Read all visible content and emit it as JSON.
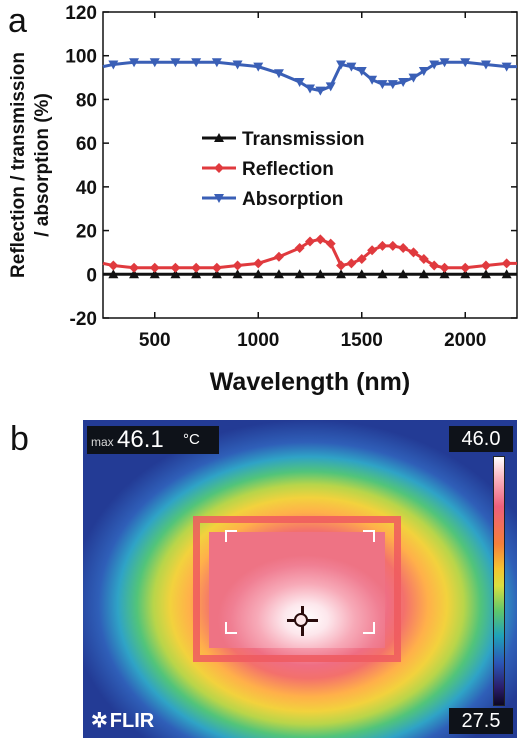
{
  "panels": {
    "a_label": "a",
    "b_label": "b"
  },
  "chart_data": {
    "type": "line",
    "xlabel": "Wavelength (nm)",
    "ylabel": "Reflection / transmission / absorption (%)",
    "ylabel_lines": [
      "Reflection / transmission",
      "/ absorption (%)"
    ],
    "xlim": [
      250,
      2250
    ],
    "ylim": [
      -20,
      120
    ],
    "xticks": [
      500,
      1000,
      1500,
      2000
    ],
    "yticks": [
      -20,
      0,
      20,
      40,
      60,
      80,
      100,
      120
    ],
    "grid": false,
    "legend_position": "center-left",
    "series": [
      {
        "name": "Transmission",
        "color": "#111111",
        "marker": "triangle-up",
        "x": [
          250,
          300,
          400,
          500,
          600,
          700,
          800,
          900,
          1000,
          1100,
          1200,
          1300,
          1400,
          1500,
          1600,
          1700,
          1800,
          1900,
          2000,
          2100,
          2200,
          2250
        ],
        "y": [
          0,
          0,
          0,
          0,
          0,
          0,
          0,
          0,
          0,
          0,
          0,
          0,
          0,
          0,
          0,
          0,
          0,
          0,
          0,
          0,
          0,
          0
        ]
      },
      {
        "name": "Reflection",
        "color": "#e03a3e",
        "marker": "diamond",
        "x": [
          250,
          300,
          400,
          500,
          600,
          700,
          800,
          900,
          1000,
          1100,
          1200,
          1250,
          1300,
          1350,
          1400,
          1450,
          1500,
          1550,
          1600,
          1650,
          1700,
          1750,
          1800,
          1850,
          1900,
          2000,
          2100,
          2200,
          2250
        ],
        "y": [
          5,
          4,
          3,
          3,
          3,
          3,
          3,
          4,
          5,
          8,
          12,
          15,
          16,
          14,
          4,
          5,
          7,
          11,
          13,
          13,
          12,
          10,
          7,
          4,
          3,
          3,
          4,
          5,
          5
        ]
      },
      {
        "name": "Absorption",
        "color": "#3a5fb6",
        "marker": "triangle-down",
        "x": [
          250,
          300,
          400,
          500,
          600,
          700,
          800,
          900,
          1000,
          1100,
          1200,
          1250,
          1300,
          1350,
          1400,
          1450,
          1500,
          1550,
          1600,
          1650,
          1700,
          1750,
          1800,
          1850,
          1900,
          2000,
          2100,
          2200,
          2250
        ],
        "y": [
          95,
          96,
          97,
          97,
          97,
          97,
          97,
          96,
          95,
          92,
          88,
          85,
          84,
          86,
          96,
          95,
          93,
          89,
          87,
          87,
          88,
          90,
          93,
          96,
          97,
          97,
          96,
          95,
          95
        ]
      }
    ]
  },
  "thermal": {
    "max_label": "max",
    "max_value": "46.1",
    "max_unit": "°C",
    "scale_max": "46.0",
    "scale_min": "27.5",
    "logo_text": "FLIR",
    "gradient_colors": [
      "#ffffff",
      "#f9b9c4",
      "#ee5f7b",
      "#f47f3a",
      "#f4c430",
      "#5fc76b",
      "#1fa2b8",
      "#2b56b7",
      "#0d0724"
    ]
  }
}
